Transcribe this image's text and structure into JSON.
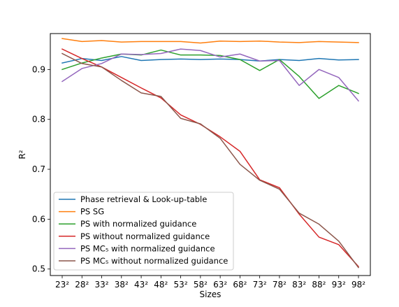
{
  "chart_data": {
    "type": "line",
    "xlabel": "Sizes",
    "ylabel": "R²",
    "categories": [
      "23²",
      "28²",
      "33²",
      "38²",
      "43²",
      "48²",
      "53²",
      "58²",
      "63²",
      "68²",
      "73²",
      "78²",
      "83²",
      "88²",
      "93²",
      "98²"
    ],
    "ylim": [
      0.487,
      0.972
    ],
    "yticks": [
      0.5,
      0.6,
      0.7,
      0.8,
      0.9
    ],
    "ytick_labels": [
      "0.5",
      "0.6",
      "0.7",
      "0.8",
      "0.9"
    ],
    "grid": false,
    "legend_position": "lower-left",
    "series": [
      {
        "name": "Phase retrieval & Look-up-table",
        "color": "#1f77b4",
        "values": [
          0.913,
          0.922,
          0.918,
          0.926,
          0.918,
          0.92,
          0.921,
          0.92,
          0.921,
          0.92,
          0.917,
          0.92,
          0.918,
          0.922,
          0.919,
          0.92
        ]
      },
      {
        "name": "PS SG",
        "color": "#ff7f0e",
        "values": [
          0.962,
          0.956,
          0.958,
          0.955,
          0.956,
          0.956,
          0.956,
          0.953,
          0.957,
          0.956,
          0.957,
          0.955,
          0.954,
          0.956,
          0.955,
          0.954
        ]
      },
      {
        "name": "PS with normalized guidance",
        "color": "#2ca02c",
        "values": [
          0.9,
          0.913,
          0.923,
          0.931,
          0.929,
          0.939,
          0.929,
          0.929,
          0.928,
          0.92,
          0.898,
          0.92,
          0.886,
          0.842,
          0.868,
          0.852
        ]
      },
      {
        "name": "PS without normalized guidance",
        "color": "#d62728",
        "values": [
          0.941,
          0.922,
          0.905,
          0.884,
          0.863,
          0.843,
          0.809,
          0.79,
          0.765,
          0.736,
          0.679,
          0.663,
          0.61,
          0.564,
          0.549,
          0.505
        ]
      },
      {
        "name": "PS MC₅ with normalized guidance",
        "color": "#9467bd",
        "values": [
          0.876,
          0.902,
          0.912,
          0.931,
          0.93,
          0.932,
          0.941,
          0.938,
          0.925,
          0.931,
          0.917,
          0.918,
          0.868,
          0.9,
          0.884,
          0.837
        ]
      },
      {
        "name": "PS MC₅ without normalized guidance",
        "color": "#8c564b",
        "values": [
          0.932,
          0.912,
          0.905,
          0.878,
          0.853,
          0.846,
          0.802,
          0.791,
          0.762,
          0.71,
          0.678,
          0.66,
          0.612,
          0.59,
          0.556,
          0.503
        ]
      }
    ]
  }
}
